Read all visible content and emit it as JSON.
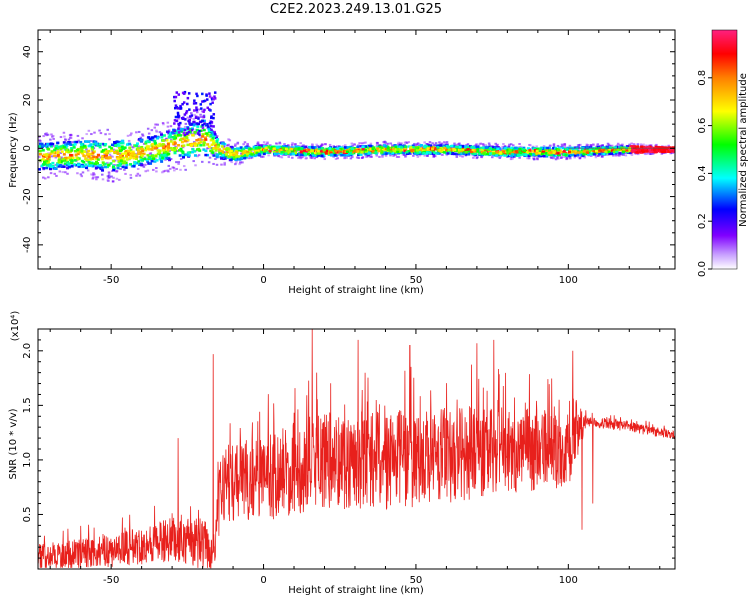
{
  "figure": {
    "title": "C2E2.2023.249.13.01.G25"
  },
  "chart_data": [
    {
      "type": "heatmap",
      "xlabel": "Height of straight line (km)",
      "ylabel": "Frequency (Hz)",
      "xlim": [
        -74,
        135
      ],
      "ylim": [
        -50,
        49
      ],
      "xticks": [
        -50,
        0,
        50,
        100
      ],
      "yticks": [
        -40,
        -20,
        0,
        20,
        40
      ],
      "colorbar": {
        "label": "Normalized spectral amplitude",
        "range": [
          0,
          1
        ],
        "ticks": [
          0.0,
          0.2,
          0.4,
          0.6,
          0.8
        ],
        "tick_labels": [
          "0.0",
          "0.2",
          "0.4",
          "0.6",
          "0.8"
        ],
        "colors": [
          "#ffffff",
          "#8000ff",
          "#0000ff",
          "#00ffff",
          "#00ff00",
          "#ffff00",
          "#ff8000",
          "#ff0000"
        ]
      },
      "ridge": {
        "x": [
          -74,
          -60,
          -50,
          -40,
          -30,
          -20,
          -15,
          -10,
          0,
          20,
          40,
          60,
          80,
          100,
          120,
          135
        ],
        "frequency": [
          -3,
          -2,
          -3,
          -1,
          2,
          5,
          0,
          -2,
          0,
          -1,
          0,
          0,
          -1,
          -1,
          0,
          0
        ],
        "spread": [
          6,
          6,
          7,
          6,
          7,
          8,
          4,
          3,
          2,
          2,
          2,
          2,
          2,
          2,
          1.5,
          1
        ]
      }
    },
    {
      "type": "line",
      "xlabel": "Height of straight line (km)",
      "ylabel": "SNR (10 * v/v)",
      "multiplier": "(x10⁴)",
      "xlim": [
        -74,
        135
      ],
      "ylim": [
        0,
        2.2
      ],
      "xticks": [
        -50,
        0,
        50,
        100
      ],
      "yticks": [
        0.5,
        1.0,
        1.5,
        2.0
      ],
      "ytick_labels": [
        "0.5",
        "1.0",
        "1.5",
        "2.0"
      ],
      "series": [
        {
          "color": "#e8201c",
          "envelope_x": [
            -74,
            -50,
            -30,
            -20,
            -16,
            -14,
            0,
            20,
            40,
            60,
            80,
            100,
            106,
            120,
            135
          ],
          "envelope_base": [
            0.1,
            0.15,
            0.25,
            0.2,
            0.15,
            0.75,
            0.8,
            0.95,
            0.95,
            1.0,
            1.05,
            1.05,
            1.35,
            1.3,
            1.22
          ],
          "envelope_amp": [
            0.12,
            0.15,
            0.2,
            0.25,
            0.2,
            0.35,
            0.4,
            0.45,
            0.45,
            0.45,
            0.4,
            0.35,
            0.05,
            0.05,
            0.04
          ],
          "peaks": [
            {
              "x": -16.5,
              "y": 1.97
            },
            {
              "x": -28,
              "y": 1.2
            },
            {
              "x": 16,
              "y": 2.2
            },
            {
              "x": 31,
              "y": 2.1
            },
            {
              "x": 48,
              "y": 2.05
            },
            {
              "x": 70,
              "y": 2.07
            },
            {
              "x": 75.5,
              "y": 2.1
            },
            {
              "x": 101.5,
              "y": 2.0
            }
          ],
          "dips": [
            {
              "x": 104.5,
              "y": 0.36
            },
            {
              "x": 108,
              "y": 0.6
            }
          ]
        }
      ]
    }
  ]
}
